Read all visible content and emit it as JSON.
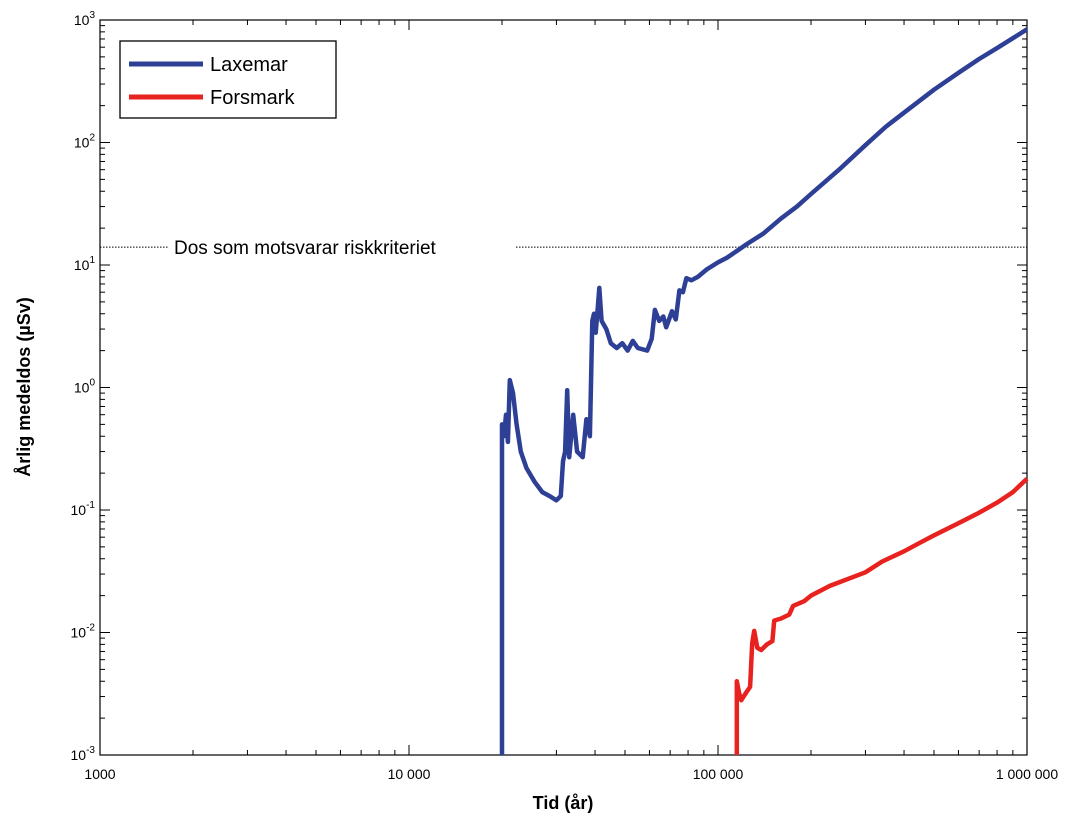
{
  "chart_data": {
    "type": "line",
    "xlabel": "Tid (år)",
    "ylabel": "Årlig medeldos (µSv)",
    "xscale": "log",
    "yscale": "log",
    "xlim": [
      1000,
      1000000
    ],
    "ylim": [
      0.001,
      1000
    ],
    "x_ticks": [
      {
        "value": 1000,
        "label": "1000"
      },
      {
        "value": 10000,
        "label": "10 000"
      },
      {
        "value": 100000,
        "label": "100 000"
      },
      {
        "value": 1000000,
        "label": "1 000 000"
      }
    ],
    "y_ticks": [
      {
        "value": 0.001,
        "base": "10",
        "exp": "-3"
      },
      {
        "value": 0.01,
        "base": "10",
        "exp": "-2"
      },
      {
        "value": 0.1,
        "base": "10",
        "exp": "-1"
      },
      {
        "value": 1,
        "base": "10",
        "exp": "0"
      },
      {
        "value": 10,
        "base": "10",
        "exp": "1"
      },
      {
        "value": 100,
        "base": "10",
        "exp": "2"
      },
      {
        "value": 1000,
        "base": "10",
        "exp": "3"
      }
    ],
    "legend_position": "top-left",
    "grid": false,
    "reference_line": {
      "value": 14,
      "label": "Dos som motsvarar riskkriteriet",
      "style": "dotted"
    },
    "series": [
      {
        "name": "Laxemar",
        "color": "#2e3f96",
        "points": [
          [
            20000,
            0.001
          ],
          [
            20000,
            0.5
          ],
          [
            20300,
            0.4
          ],
          [
            20600,
            0.6
          ],
          [
            20900,
            0.36
          ],
          [
            21200,
            1.15
          ],
          [
            21700,
            0.9
          ],
          [
            22300,
            0.5
          ],
          [
            23000,
            0.3
          ],
          [
            24000,
            0.22
          ],
          [
            25500,
            0.17
          ],
          [
            27000,
            0.14
          ],
          [
            28500,
            0.13
          ],
          [
            30000,
            0.12
          ],
          [
            31000,
            0.13
          ],
          [
            31500,
            0.25
          ],
          [
            32000,
            0.3
          ],
          [
            32500,
            0.95
          ],
          [
            33000,
            0.27
          ],
          [
            34000,
            0.6
          ],
          [
            35000,
            0.3
          ],
          [
            36500,
            0.27
          ],
          [
            37500,
            0.55
          ],
          [
            38500,
            0.4
          ],
          [
            39200,
            3.5
          ],
          [
            39700,
            4.0
          ],
          [
            40200,
            2.8
          ],
          [
            40800,
            4.4
          ],
          [
            41300,
            6.5
          ],
          [
            42000,
            3.5
          ],
          [
            43500,
            3.0
          ],
          [
            45000,
            2.3
          ],
          [
            47000,
            2.1
          ],
          [
            49000,
            2.3
          ],
          [
            51000,
            2.0
          ],
          [
            53000,
            2.4
          ],
          [
            55000,
            2.1
          ],
          [
            59000,
            2.0
          ],
          [
            61000,
            2.5
          ],
          [
            62500,
            4.3
          ],
          [
            64500,
            3.5
          ],
          [
            66500,
            3.8
          ],
          [
            68000,
            3.1
          ],
          [
            71000,
            4.2
          ],
          [
            73000,
            3.6
          ],
          [
            75000,
            6.2
          ],
          [
            77000,
            6.0
          ],
          [
            79000,
            7.8
          ],
          [
            82000,
            7.5
          ],
          [
            86000,
            8.0
          ],
          [
            92000,
            9.2
          ],
          [
            100000,
            10.5
          ],
          [
            107000,
            11.5
          ],
          [
            115000,
            13
          ],
          [
            125000,
            15
          ],
          [
            140000,
            18
          ],
          [
            160000,
            24
          ],
          [
            180000,
            30
          ],
          [
            200000,
            38
          ],
          [
            250000,
            62
          ],
          [
            300000,
            95
          ],
          [
            350000,
            135
          ],
          [
            400000,
            175
          ],
          [
            500000,
            270
          ],
          [
            600000,
            370
          ],
          [
            700000,
            480
          ],
          [
            800000,
            590
          ],
          [
            900000,
            710
          ],
          [
            1000000,
            840
          ]
        ]
      },
      {
        "name": "Forsmark",
        "color": "#e8231f",
        "points": [
          [
            115000,
            0.001
          ],
          [
            115000,
            0.004
          ],
          [
            117000,
            0.0032
          ],
          [
            119000,
            0.0028
          ],
          [
            121000,
            0.003
          ],
          [
            124000,
            0.0033
          ],
          [
            127000,
            0.0036
          ],
          [
            129000,
            0.0082
          ],
          [
            131000,
            0.0103
          ],
          [
            134000,
            0.0075
          ],
          [
            138000,
            0.0072
          ],
          [
            144000,
            0.008
          ],
          [
            150000,
            0.0085
          ],
          [
            152000,
            0.0125
          ],
          [
            160000,
            0.013
          ],
          [
            170000,
            0.014
          ],
          [
            175000,
            0.0165
          ],
          [
            190000,
            0.018
          ],
          [
            200000,
            0.02
          ],
          [
            230000,
            0.024
          ],
          [
            270000,
            0.028
          ],
          [
            300000,
            0.031
          ],
          [
            340000,
            0.038
          ],
          [
            400000,
            0.046
          ],
          [
            450000,
            0.054
          ],
          [
            500000,
            0.062
          ],
          [
            600000,
            0.078
          ],
          [
            700000,
            0.095
          ],
          [
            800000,
            0.115
          ],
          [
            900000,
            0.14
          ],
          [
            1000000,
            0.18
          ]
        ]
      }
    ]
  }
}
